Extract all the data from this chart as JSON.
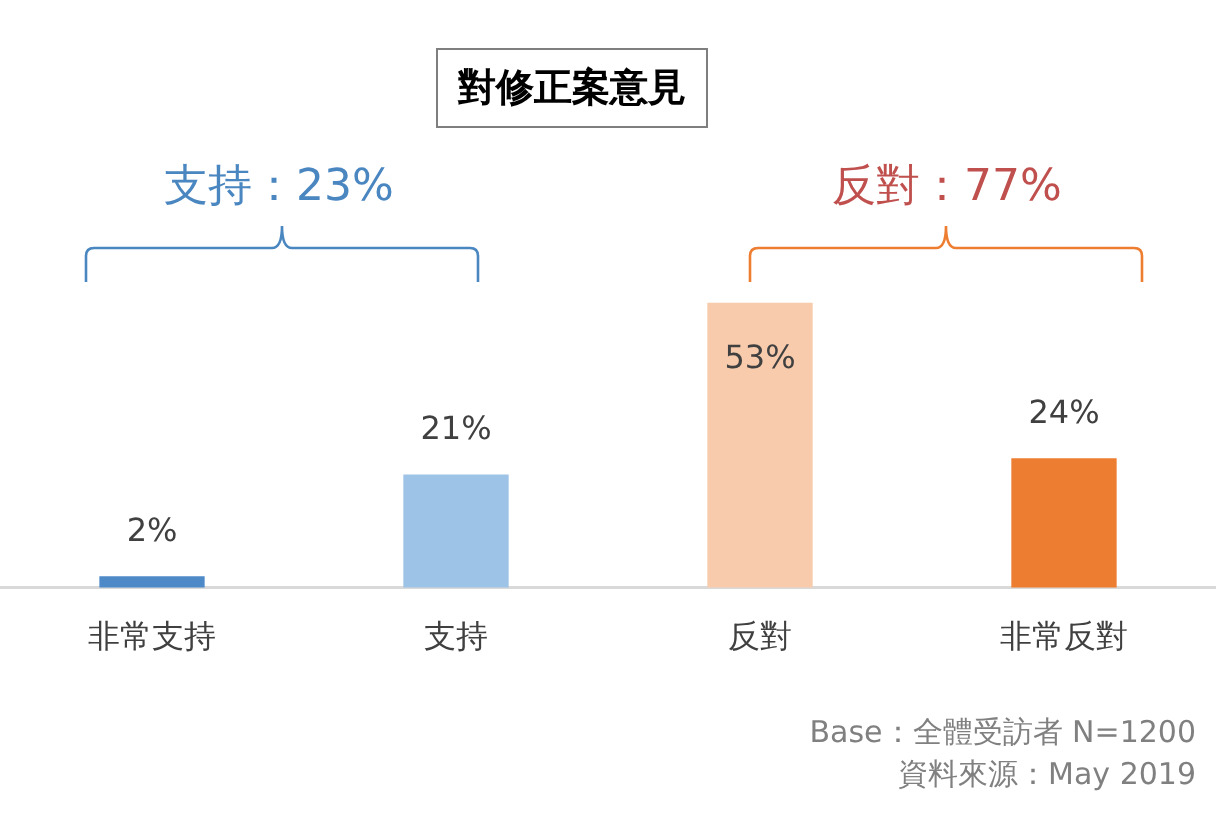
{
  "chart_data": {
    "type": "bar",
    "title": "對修正案意見",
    "categories": [
      "非常支持",
      "支持",
      "反對",
      "非常反對"
    ],
    "values": [
      2,
      21,
      53,
      24
    ],
    "colors": [
      "#4e8ac8",
      "#9dc3e6",
      "#f8cbad",
      "#ed7d31"
    ],
    "value_labels": [
      "2%",
      "21%",
      "53%",
      "24%"
    ],
    "grid": false,
    "legend": false,
    "annotations": [
      "支持：23%",
      "反對：77%",
      "Base：全體受訪者 N=1200",
      "資料來源：May 2019"
    ]
  }
}
